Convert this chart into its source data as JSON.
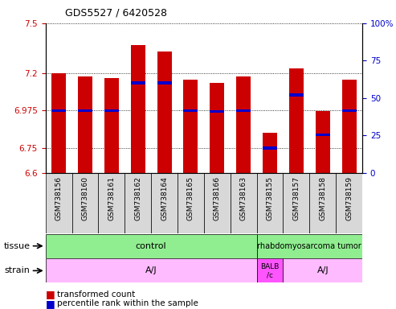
{
  "title": "GDS5527 / 6420528",
  "samples": [
    "GSM738156",
    "GSM738160",
    "GSM738161",
    "GSM738162",
    "GSM738164",
    "GSM738165",
    "GSM738166",
    "GSM738163",
    "GSM738155",
    "GSM738157",
    "GSM738158",
    "GSM738159"
  ],
  "bar_bottoms": 6.6,
  "bar_tops": [
    7.2,
    7.18,
    7.17,
    7.37,
    7.33,
    7.16,
    7.14,
    7.18,
    6.84,
    7.23,
    6.97,
    7.16
  ],
  "percentile_vals": [
    6.975,
    6.975,
    6.975,
    7.14,
    7.14,
    6.975,
    6.97,
    6.975,
    6.75,
    7.07,
    6.83,
    6.975
  ],
  "ylim_left": [
    6.6,
    7.5
  ],
  "ylim_right": [
    0,
    100
  ],
  "yticks_left": [
    6.6,
    6.75,
    6.975,
    7.2,
    7.5
  ],
  "yticks_right": [
    0,
    25,
    50,
    75,
    100
  ],
  "bar_color": "#cc0000",
  "percentile_color": "#0000cc",
  "title_color": "#000000",
  "left_tick_color": "#cc0000",
  "right_tick_color": "#0000cc",
  "tissue_labels": [
    "control",
    "rhabdomyosarcoma tumor"
  ],
  "tissue_starts": [
    0,
    8
  ],
  "tissue_ends": [
    8,
    12
  ],
  "tissue_color": "#90ee90",
  "strain_labels": [
    "A/J",
    "BALB\n/c",
    "A/J"
  ],
  "strain_starts": [
    0,
    8,
    9
  ],
  "strain_ends": [
    8,
    9,
    12
  ],
  "strain_colors": [
    "#ffbbff",
    "#ff55ff",
    "#ffbbff"
  ],
  "legend_red_label": "transformed count",
  "legend_blue_label": "percentile rank within the sample",
  "bar_width": 0.55,
  "n_samples": 12
}
